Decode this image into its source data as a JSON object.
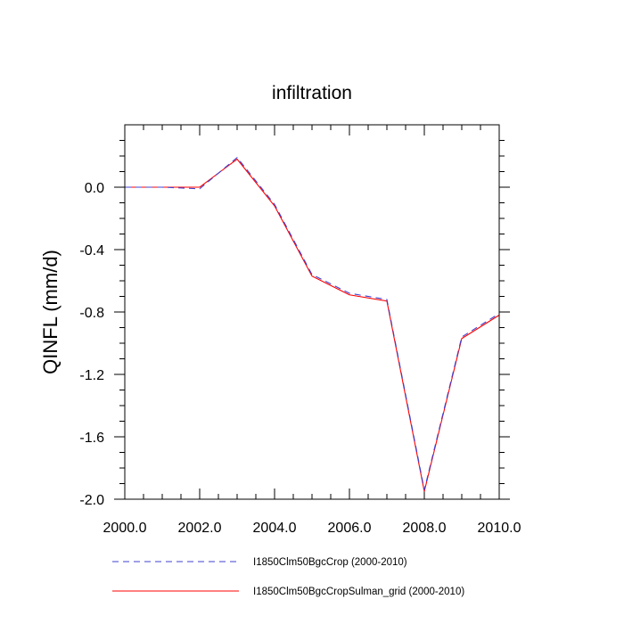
{
  "chart_data": {
    "type": "line",
    "title": "infiltration",
    "xlabel": "",
    "ylabel": "QINFL  (mm/d)",
    "xlim": [
      2000,
      2010
    ],
    "ylim": [
      -2.0,
      0.4
    ],
    "x_ticks": [
      2000,
      2002,
      2004,
      2006,
      2008,
      2010
    ],
    "x_tick_labels": [
      "2000.0",
      "2002.0",
      "2004.0",
      "2006.0",
      "2008.0",
      "2010.0"
    ],
    "y_ticks": [
      0.0,
      -0.4,
      -0.8,
      -1.2,
      -1.6,
      -2.0
    ],
    "y_tick_labels": [
      "0.0",
      "-0.4",
      "-0.8",
      "-1.2",
      "-1.6",
      "-2.0"
    ],
    "grid": false,
    "legend_position": "bottom",
    "x": [
      2000,
      2001,
      2002,
      2003,
      2004,
      2005,
      2006,
      2007,
      2008,
      2009,
      2010
    ],
    "series": [
      {
        "name": "I1850Clm50BgcCrop (2000-2010)",
        "color": "#4040d0",
        "dash": "dashed",
        "values": [
          0.0,
          0.0,
          -0.01,
          0.19,
          -0.11,
          -0.56,
          -0.68,
          -0.72,
          -1.94,
          -0.96,
          -0.81
        ]
      },
      {
        "name": "I1850Clm50BgcCropSulman_grid (2000-2010)",
        "color": "#ff0000",
        "dash": "solid",
        "values": [
          0.0,
          0.0,
          0.0,
          0.18,
          -0.12,
          -0.57,
          -0.69,
          -0.73,
          -1.95,
          -0.97,
          -0.82
        ]
      }
    ]
  }
}
